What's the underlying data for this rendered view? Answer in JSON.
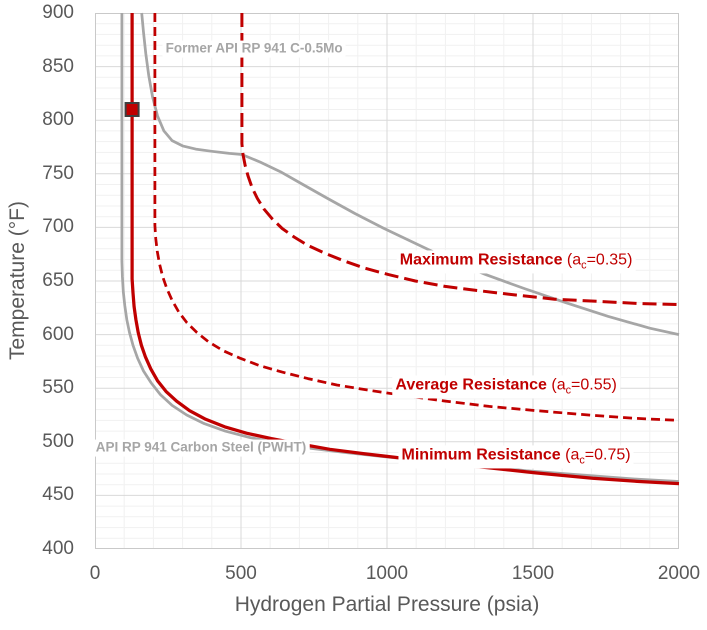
{
  "chart_data": {
    "type": "line",
    "title": "",
    "xlabel": "Hydrogen Partial Pressure (psia)",
    "ylabel": "Temperature (°F)",
    "xlim": [
      0,
      2000
    ],
    "ylim": [
      400,
      900
    ],
    "x_ticks": [
      0,
      500,
      1000,
      1500,
      2000
    ],
    "y_ticks": [
      400,
      450,
      500,
      550,
      600,
      650,
      700,
      750,
      800,
      850,
      900
    ],
    "grid": {
      "x_minor": 100,
      "y_minor": 10,
      "x_major": 500,
      "y_major": 50,
      "minor_color": "#F1F1F1",
      "major_color": "#D9D9D9",
      "border_color": "#C9C9C9"
    },
    "legend": "none",
    "series": [
      {
        "id": "former-c-0-5mo",
        "label": "Former API RP 941 C-0.5Mo",
        "color": "#A6A6A6",
        "width": 2.75,
        "dash": "solid",
        "points": [
          [
            160,
            900
          ],
          [
            166,
            882
          ],
          [
            174,
            862
          ],
          [
            184,
            842
          ],
          [
            197,
            822
          ],
          [
            214,
            804
          ],
          [
            236,
            790
          ],
          [
            264,
            781
          ],
          [
            300,
            776
          ],
          [
            345,
            773
          ],
          [
            400,
            771
          ],
          [
            460,
            769
          ],
          [
            503,
            768
          ],
          [
            565,
            761
          ],
          [
            635,
            752
          ],
          [
            712,
            740
          ],
          [
            797,
            727
          ],
          [
            890,
            713
          ],
          [
            990,
            699
          ],
          [
            1098,
            685
          ],
          [
            1214,
            670
          ],
          [
            1338,
            656
          ],
          [
            1470,
            643
          ],
          [
            1610,
            630
          ],
          [
            1758,
            617
          ],
          [
            1900,
            606
          ],
          [
            2000,
            600
          ]
        ]
      },
      {
        "id": "carbon-steel-pwht",
        "label": "API RP 941 Carbon Steel (PWHT)",
        "color": "#A6A6A6",
        "width": 2.75,
        "dash": "solid",
        "points": [
          [
            92,
            900
          ],
          [
            92,
            668
          ],
          [
            94,
            654
          ],
          [
            97,
            640
          ],
          [
            102,
            627
          ],
          [
            109,
            614
          ],
          [
            118,
            602
          ],
          [
            130,
            590
          ],
          [
            146,
            578
          ],
          [
            166,
            566
          ],
          [
            192,
            555
          ],
          [
            224,
            544
          ],
          [
            264,
            534
          ],
          [
            314,
            525
          ],
          [
            374,
            517
          ],
          [
            446,
            510
          ],
          [
            530,
            504
          ],
          [
            627,
            499
          ],
          [
            737,
            494
          ],
          [
            857,
            490
          ],
          [
            992,
            486
          ],
          [
            1142,
            482
          ],
          [
            1302,
            478
          ],
          [
            1477,
            473
          ],
          [
            1667,
            469
          ],
          [
            1862,
            465
          ],
          [
            2000,
            463
          ]
        ]
      },
      {
        "id": "maximum-resistance",
        "label": "Maximum Resistance (ac=0.35)",
        "color": "#C00000",
        "width": 3,
        "dash": "long-dash",
        "points": [
          [
            503,
            900
          ],
          [
            503,
            778
          ],
          [
            507,
            768
          ],
          [
            514,
            758
          ],
          [
            524,
            748
          ],
          [
            538,
            737
          ],
          [
            556,
            727
          ],
          [
            579,
            717
          ],
          [
            607,
            708
          ],
          [
            641,
            699
          ],
          [
            682,
            691
          ],
          [
            730,
            683
          ],
          [
            786,
            676
          ],
          [
            850,
            669
          ],
          [
            923,
            662
          ],
          [
            1005,
            656
          ],
          [
            1097,
            650
          ],
          [
            1199,
            645
          ],
          [
            1312,
            641
          ],
          [
            1437,
            637
          ],
          [
            1574,
            633
          ],
          [
            1724,
            631
          ],
          [
            1860,
            629
          ],
          [
            2000,
            628
          ]
        ]
      },
      {
        "id": "average-resistance",
        "label": "Average Resistance (ac=0.55)",
        "color": "#C00000",
        "width": 2.75,
        "dash": "dash",
        "points": [
          [
            205,
            900
          ],
          [
            205,
            702
          ],
          [
            208,
            690
          ],
          [
            213,
            678
          ],
          [
            221,
            666
          ],
          [
            232,
            654
          ],
          [
            246,
            643
          ],
          [
            264,
            632
          ],
          [
            287,
            621
          ],
          [
            315,
            611
          ],
          [
            349,
            602
          ],
          [
            390,
            593
          ],
          [
            439,
            585
          ],
          [
            497,
            578
          ],
          [
            564,
            571
          ],
          [
            641,
            565
          ],
          [
            729,
            559
          ],
          [
            828,
            553
          ],
          [
            939,
            548
          ],
          [
            1063,
            543
          ],
          [
            1200,
            538
          ],
          [
            1350,
            533
          ],
          [
            1513,
            529
          ],
          [
            1690,
            525
          ],
          [
            1840,
            522
          ],
          [
            2000,
            520
          ]
        ]
      },
      {
        "id": "minimum-resistance",
        "label": "Minimum Resistance (ac=0.75)",
        "color": "#C00000",
        "width": 3.25,
        "dash": "solid",
        "points": [
          [
            127,
            900
          ],
          [
            127,
            652
          ],
          [
            130,
            639
          ],
          [
            134,
            626
          ],
          [
            140,
            614
          ],
          [
            148,
            602
          ],
          [
            159,
            590
          ],
          [
            173,
            579
          ],
          [
            191,
            568
          ],
          [
            214,
            557
          ],
          [
            243,
            547
          ],
          [
            279,
            538
          ],
          [
            324,
            529
          ],
          [
            379,
            521
          ],
          [
            444,
            514
          ],
          [
            519,
            508
          ],
          [
            604,
            503
          ],
          [
            699,
            498
          ],
          [
            804,
            493
          ],
          [
            919,
            489
          ],
          [
            1044,
            485
          ],
          [
            1184,
            480
          ],
          [
            1339,
            476
          ],
          [
            1509,
            471
          ],
          [
            1704,
            466
          ],
          [
            1864,
            463
          ],
          [
            2000,
            461
          ]
        ]
      }
    ],
    "marker_point": {
      "x": 127,
      "y": 810,
      "shape": "square",
      "color": "#C00000",
      "border": "#3F3F3F"
    },
    "annotations": [
      {
        "id": "former-c-0-5mo-label",
        "bold": "Former API RP 941 C-0.5Mo",
        "x": 545,
        "y": 866,
        "color": "#A6A6A6"
      },
      {
        "id": "carbon-steel-pwht-label",
        "bold": "API RP 941 Carbon Steel (PWHT)",
        "x": 363,
        "y": 494,
        "color": "#A6A6A6"
      },
      {
        "id": "maximum-resistance-label",
        "bold": "Maximum Resistance",
        "formula_pre": "(a",
        "formula_sub": "c",
        "formula_post": "=0.35)",
        "x": 1442,
        "y": 668,
        "color": "#C00000"
      },
      {
        "id": "average-resistance-label",
        "bold": "Average Resistance",
        "formula_pre": "(a",
        "formula_sub": "c",
        "formula_post": "=0.55)",
        "x": 1408,
        "y": 551,
        "color": "#C00000"
      },
      {
        "id": "minimum-resistance-label",
        "bold": "Minimum Resistance",
        "formula_pre": "(a",
        "formula_sub": "c",
        "formula_post": "=0.75)",
        "x": 1442,
        "y": 486,
        "color": "#C00000"
      }
    ]
  }
}
